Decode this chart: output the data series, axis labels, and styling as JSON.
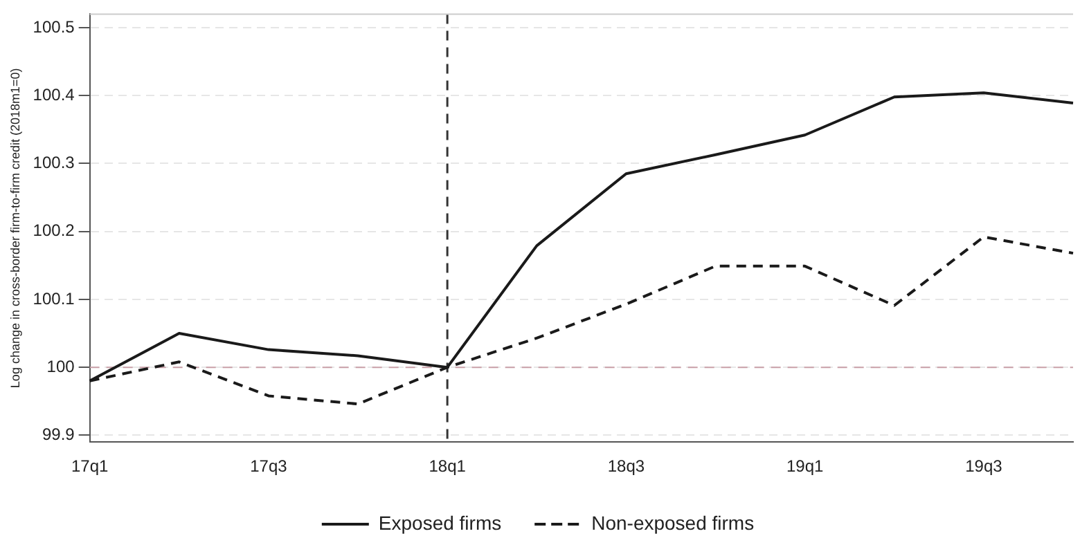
{
  "chart_data": {
    "type": "line",
    "ylabel": "Log change in cross-border firm-to-firm credit (2018m1=0)",
    "categories": [
      "17q1",
      null,
      "17q3",
      null,
      "18q1",
      null,
      "18q3",
      null,
      "19q1",
      null,
      "19q3",
      null
    ],
    "series": [
      {
        "name": "Exposed firms",
        "color": "#1a1a1a",
        "line_style": "solid",
        "values": [
          99.98,
          100.05,
          100.026,
          100.017,
          100,
          100.179,
          100.285,
          100.313,
          100.342,
          100.398,
          100.404,
          100.389
        ]
      },
      {
        "name": "Non-exposed firms",
        "color": "#1a1a1a",
        "line_style": "dashed",
        "values": [
          99.98,
          100.008,
          99.958,
          99.946,
          100,
          100.043,
          100.093,
          100.149,
          100.149,
          100.091,
          100.192,
          100.168
        ]
      }
    ],
    "ylim": [
      99.89,
      100.52
    ],
    "yticks": [
      99.9,
      100,
      100.1,
      100.2,
      100.3,
      100.4,
      100.5
    ],
    "ref_lines": [
      {
        "axis": "y",
        "value": 100,
        "color": "#c9a0a8",
        "line_style": "dashed"
      },
      {
        "axis": "x",
        "value": "18q1",
        "color": "#333333",
        "line_style": "dashed"
      }
    ],
    "grid": "y",
    "legend": "bottom",
    "marker": "none"
  }
}
